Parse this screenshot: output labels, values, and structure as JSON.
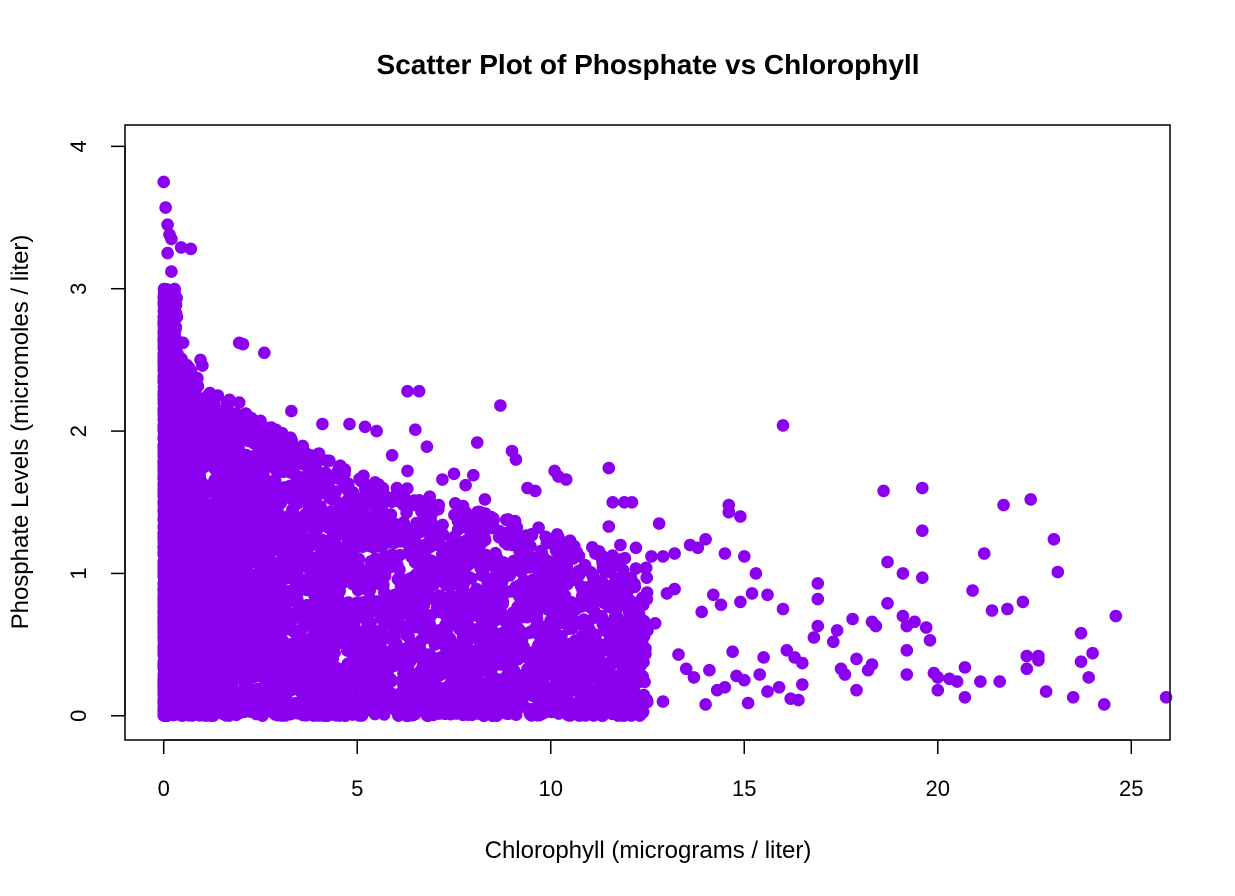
{
  "chart_data": {
    "type": "scatter",
    "title": "Scatter Plot of Phosphate vs Chlorophyll",
    "xlabel": "Chlorophyll (micrograms / liter)",
    "ylabel": "Phosphate Levels (micromoles / liter)",
    "xlim": [
      -1,
      26
    ],
    "ylim": [
      -0.17,
      4.15
    ],
    "xticks": [
      0,
      5,
      10,
      15,
      20,
      25
    ],
    "yticks": [
      0,
      1,
      2,
      3,
      4
    ],
    "xtick_labels": [
      "0",
      "5",
      "10",
      "15",
      "20",
      "25"
    ],
    "ytick_labels": [
      "0",
      "1",
      "2",
      "3",
      "4"
    ],
    "grid": false,
    "legend": "none",
    "point_color": "#8B00EE",
    "series": [
      {
        "points": [
          [
            0.0,
            3.75
          ],
          [
            0.05,
            3.57
          ],
          [
            0.1,
            3.45
          ],
          [
            0.15,
            3.38
          ],
          [
            0.2,
            3.35
          ],
          [
            0.1,
            3.25
          ],
          [
            0.2,
            3.12
          ],
          [
            0.45,
            3.29
          ],
          [
            0.7,
            3.28
          ],
          [
            0.15,
            2.95
          ],
          [
            0.3,
            2.8
          ],
          [
            0.5,
            2.62
          ],
          [
            0.95,
            2.5
          ],
          [
            1.0,
            2.46
          ],
          [
            1.95,
            2.62
          ],
          [
            2.05,
            2.61
          ],
          [
            2.6,
            2.55
          ],
          [
            1.4,
            2.25
          ],
          [
            1.7,
            2.22
          ],
          [
            1.95,
            2.2
          ],
          [
            2.2,
            2.1
          ],
          [
            3.3,
            2.14
          ],
          [
            4.1,
            2.05
          ],
          [
            4.8,
            2.05
          ],
          [
            5.2,
            2.03
          ],
          [
            6.3,
            2.28
          ],
          [
            6.6,
            2.28
          ],
          [
            8.7,
            2.18
          ],
          [
            6.5,
            2.01
          ],
          [
            5.5,
            2.0
          ],
          [
            6.8,
            1.89
          ],
          [
            8.1,
            1.92
          ],
          [
            9.0,
            1.86
          ],
          [
            9.1,
            1.8
          ],
          [
            5.9,
            1.83
          ],
          [
            6.3,
            1.72
          ],
          [
            7.2,
            1.66
          ],
          [
            7.5,
            1.7
          ],
          [
            8.0,
            1.69
          ],
          [
            7.8,
            1.62
          ],
          [
            8.3,
            1.52
          ],
          [
            9.4,
            1.6
          ],
          [
            9.6,
            1.58
          ],
          [
            10.1,
            1.72
          ],
          [
            10.2,
            1.68
          ],
          [
            10.4,
            1.66
          ],
          [
            11.5,
            1.74
          ],
          [
            11.6,
            1.5
          ],
          [
            11.9,
            1.5
          ],
          [
            12.1,
            1.5
          ],
          [
            11.5,
            1.33
          ],
          [
            12.8,
            1.35
          ],
          [
            11.8,
            1.2
          ],
          [
            12.2,
            1.18
          ],
          [
            12.6,
            1.12
          ],
          [
            12.9,
            1.12
          ],
          [
            13.2,
            1.14
          ],
          [
            13.6,
            1.2
          ],
          [
            13.8,
            1.18
          ],
          [
            14.0,
            1.24
          ],
          [
            14.5,
            1.14
          ],
          [
            14.6,
            1.48
          ],
          [
            14.6,
            1.43
          ],
          [
            14.9,
            1.4
          ],
          [
            15.0,
            1.12
          ],
          [
            15.3,
            1.0
          ],
          [
            15.2,
            0.86
          ],
          [
            15.6,
            0.85
          ],
          [
            16.0,
            0.75
          ],
          [
            16.0,
            2.04
          ],
          [
            16.1,
            0.46
          ],
          [
            16.3,
            0.41
          ],
          [
            16.5,
            0.37
          ],
          [
            16.9,
            0.93
          ],
          [
            16.9,
            0.82
          ],
          [
            16.8,
            0.55
          ],
          [
            16.9,
            0.63
          ],
          [
            17.3,
            0.52
          ],
          [
            17.4,
            0.6
          ],
          [
            17.5,
            0.33
          ],
          [
            17.6,
            0.29
          ],
          [
            17.8,
            0.68
          ],
          [
            17.9,
            0.4
          ],
          [
            17.9,
            0.18
          ],
          [
            18.2,
            0.32
          ],
          [
            18.3,
            0.36
          ],
          [
            18.3,
            0.66
          ],
          [
            18.4,
            0.63
          ],
          [
            18.6,
            1.58
          ],
          [
            18.7,
            1.08
          ],
          [
            18.7,
            0.79
          ],
          [
            19.1,
            1.0
          ],
          [
            19.1,
            0.7
          ],
          [
            19.2,
            0.63
          ],
          [
            19.2,
            0.46
          ],
          [
            19.2,
            0.29
          ],
          [
            19.4,
            0.66
          ],
          [
            19.6,
            1.6
          ],
          [
            19.6,
            1.3
          ],
          [
            19.6,
            0.97
          ],
          [
            19.7,
            0.62
          ],
          [
            19.8,
            0.53
          ],
          [
            19.9,
            0.3
          ],
          [
            20.0,
            0.18
          ],
          [
            20.0,
            0.27
          ],
          [
            20.3,
            0.26
          ],
          [
            20.5,
            0.24
          ],
          [
            20.7,
            0.34
          ],
          [
            20.7,
            0.13
          ],
          [
            20.9,
            0.88
          ],
          [
            21.1,
            0.24
          ],
          [
            21.2,
            1.14
          ],
          [
            21.4,
            0.74
          ],
          [
            21.6,
            0.24
          ],
          [
            21.7,
            1.48
          ],
          [
            21.8,
            0.75
          ],
          [
            22.2,
            0.8
          ],
          [
            22.3,
            0.33
          ],
          [
            22.3,
            0.42
          ],
          [
            22.4,
            1.52
          ],
          [
            22.6,
            0.39
          ],
          [
            22.6,
            0.42
          ],
          [
            22.8,
            0.17
          ],
          [
            23.0,
            1.24
          ],
          [
            23.1,
            1.01
          ],
          [
            23.5,
            0.13
          ],
          [
            23.7,
            0.58
          ],
          [
            23.7,
            0.38
          ],
          [
            23.9,
            0.27
          ],
          [
            24.0,
            0.44
          ],
          [
            24.3,
            0.08
          ],
          [
            24.6,
            0.7
          ],
          [
            25.9,
            0.13
          ],
          [
            13.3,
            0.43
          ],
          [
            13.5,
            0.33
          ],
          [
            13.7,
            0.27
          ],
          [
            14.0,
            0.08
          ],
          [
            14.1,
            0.32
          ],
          [
            14.3,
            0.18
          ],
          [
            14.5,
            0.2
          ],
          [
            14.7,
            0.45
          ],
          [
            14.8,
            0.28
          ],
          [
            15.0,
            0.25
          ],
          [
            15.1,
            0.09
          ],
          [
            15.4,
            0.29
          ],
          [
            15.5,
            0.41
          ],
          [
            15.6,
            0.17
          ],
          [
            15.9,
            0.2
          ],
          [
            16.2,
            0.12
          ],
          [
            16.4,
            0.11
          ],
          [
            16.5,
            0.22
          ],
          [
            13.9,
            0.73
          ],
          [
            14.2,
            0.85
          ],
          [
            14.4,
            0.78
          ],
          [
            14.9,
            0.8
          ],
          [
            13.2,
            0.89
          ],
          [
            13.0,
            0.86
          ],
          [
            12.7,
            0.65
          ],
          [
            12.5,
            0.6
          ],
          [
            12.9,
            0.1
          ],
          [
            12.4,
            0.09
          ]
        ]
      }
    ]
  }
}
